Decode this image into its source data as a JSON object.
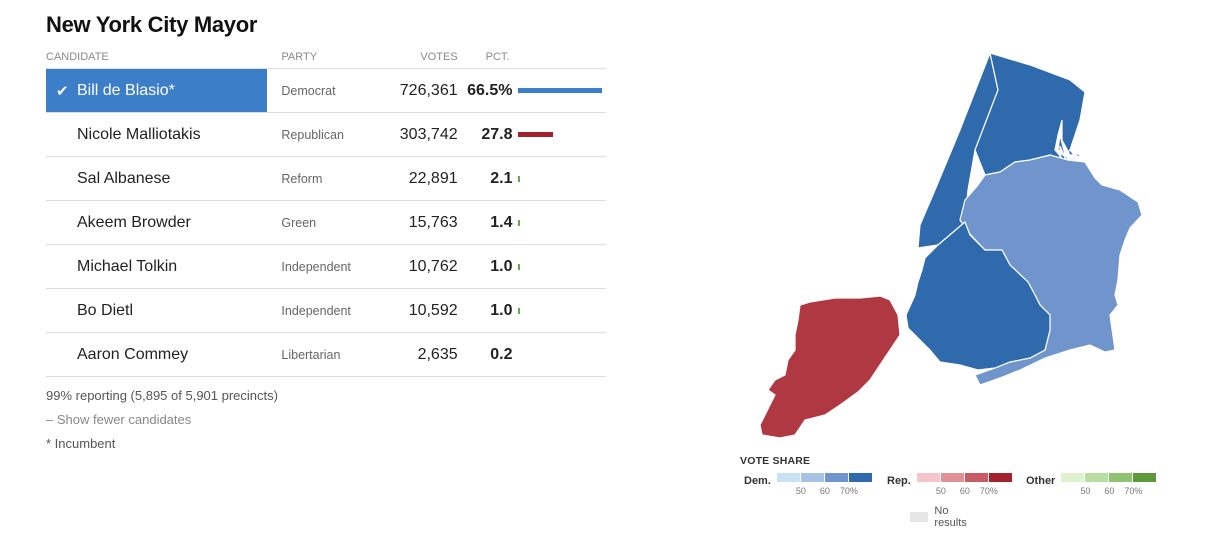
{
  "title": "New York City Mayor",
  "headers": {
    "candidate": "CANDIDATE",
    "party": "PARTY",
    "votes": "VOTES",
    "pct": "PCT."
  },
  "candidates": [
    {
      "name": "Bill de Blasio*",
      "party": "Democrat",
      "votes": "726,361",
      "pct": "66.5%",
      "pct_value": 66.5,
      "color": "#3d7ec9",
      "winner": true
    },
    {
      "name": "Nicole Malliotakis",
      "party": "Republican",
      "votes": "303,742",
      "pct": "27.8",
      "pct_value": 27.8,
      "color": "#a3202e",
      "winner": false
    },
    {
      "name": "Sal Albanese",
      "party": "Reform",
      "votes": "22,891",
      "pct": "2.1",
      "pct_value": 2.1,
      "color": "#6aa84f",
      "winner": false
    },
    {
      "name": "Akeem Browder",
      "party": "Green",
      "votes": "15,763",
      "pct": "1.4",
      "pct_value": 1.4,
      "color": "#6aa84f",
      "winner": false
    },
    {
      "name": "Michael Tolkin",
      "party": "Independent",
      "votes": "10,762",
      "pct": "1.0",
      "pct_value": 1.0,
      "color": "#6aa84f",
      "winner": false
    },
    {
      "name": "Bo Dietl",
      "party": "Independent",
      "votes": "10,592",
      "pct": "1.0",
      "pct_value": 1.0,
      "color": "#6aa84f",
      "winner": false
    },
    {
      "name": "Aaron Commey",
      "party": "Libertarian",
      "votes": "2,635",
      "pct": "0.2",
      "pct_value": 0.2,
      "color": "#6aa84f",
      "winner": false
    }
  ],
  "notes": {
    "reporting": "99% reporting (5,895 of 5,901 precincts)",
    "toggle": "– Show fewer candidates",
    "incumbent": "* Incumbent"
  },
  "map": {
    "boroughs": [
      {
        "name": "Manhattan",
        "fill": "#2f6aad"
      },
      {
        "name": "Bronx",
        "fill": "#2f6aad"
      },
      {
        "name": "Queens",
        "fill": "#6f95cc"
      },
      {
        "name": "Brooklyn",
        "fill": "#2f6aad"
      },
      {
        "name": "Staten Island",
        "fill": "#b03843"
      }
    ]
  },
  "legend": {
    "title": "VOTE SHARE",
    "groups": [
      {
        "label": "Dem.",
        "colors": [
          "#c9e1f5",
          "#a6c3e6",
          "#6f95cc",
          "#2f6aad"
        ],
        "ticks": [
          "50",
          "60",
          "70%"
        ]
      },
      {
        "label": "Rep.",
        "colors": [
          "#f2c6cb",
          "#e09197",
          "#c65c64",
          "#a3202e"
        ],
        "ticks": [
          "50",
          "60",
          "70%"
        ]
      },
      {
        "label": "Other",
        "colors": [
          "#dff2cf",
          "#b9dca0",
          "#8fc271",
          "#5c9a3b"
        ],
        "ticks": [
          "50",
          "60",
          "70%"
        ]
      }
    ],
    "no_results": "No results"
  },
  "chart_data": {
    "type": "bar",
    "title": "New York City Mayor",
    "categories": [
      "Bill de Blasio*",
      "Nicole Malliotakis",
      "Sal Albanese",
      "Akeem Browder",
      "Michael Tolkin",
      "Bo Dietl",
      "Aaron Commey"
    ],
    "values": [
      66.5,
      27.8,
      2.1,
      1.4,
      1.0,
      1.0,
      0.2
    ],
    "votes": [
      726361,
      303742,
      22891,
      15763,
      10762,
      10592,
      2635
    ]
  }
}
